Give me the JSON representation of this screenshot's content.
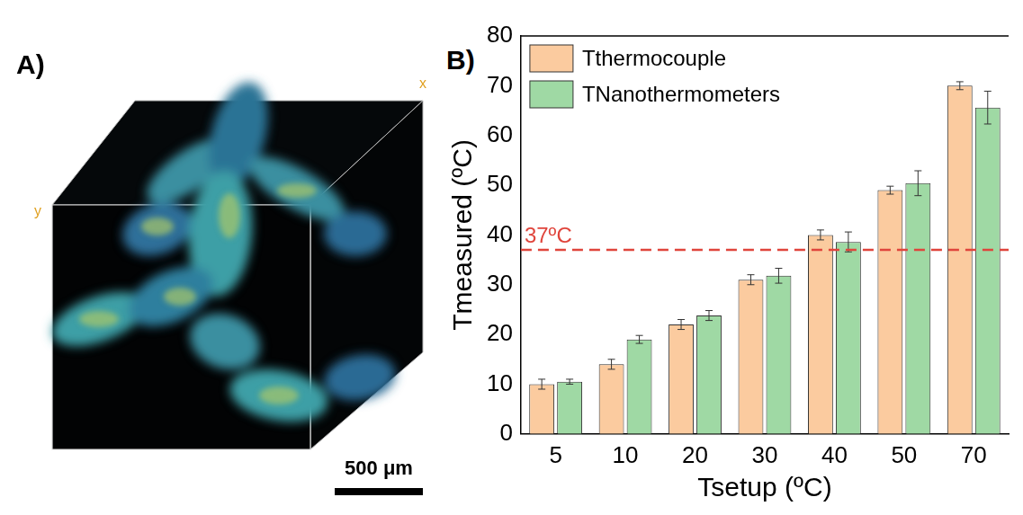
{
  "image_panel": {
    "panel": "A)",
    "axis_labels": [
      "x",
      "y"
    ],
    "scale_bar": "500 μm"
  },
  "chart_data": {
    "type": "bar",
    "panel": "B)",
    "x_label": "Tsetup (ºC)",
    "y_label": "Tmeasured (ºC)",
    "categories": [
      "5",
      "10",
      "20",
      "30",
      "40",
      "50",
      "70"
    ],
    "series": [
      {
        "name": "Tthermocouple",
        "color": "#fbcb9f",
        "values": [
          10,
          14,
          22,
          31,
          40,
          49,
          70
        ],
        "errors": [
          1,
          1,
          1,
          1,
          1,
          0.8,
          0.8
        ]
      },
      {
        "name": "TNanothermometers",
        "color": "#9fd9a4",
        "values": [
          10.5,
          19,
          23.8,
          31.8,
          38.6,
          50.4,
          65.6
        ],
        "errors": [
          0.5,
          0.8,
          1,
          1.5,
          2,
          2.5,
          3.3
        ]
      }
    ],
    "ylim": [
      0,
      80
    ],
    "yticks": [
      0,
      10,
      20,
      30,
      40,
      50,
      60,
      70,
      80
    ],
    "grid": false,
    "legend": "upper left",
    "annotations": [
      {
        "type": "hline",
        "y": 37,
        "label": "37ºC",
        "color": "#e0453c",
        "line_style": "dashed"
      }
    ]
  }
}
